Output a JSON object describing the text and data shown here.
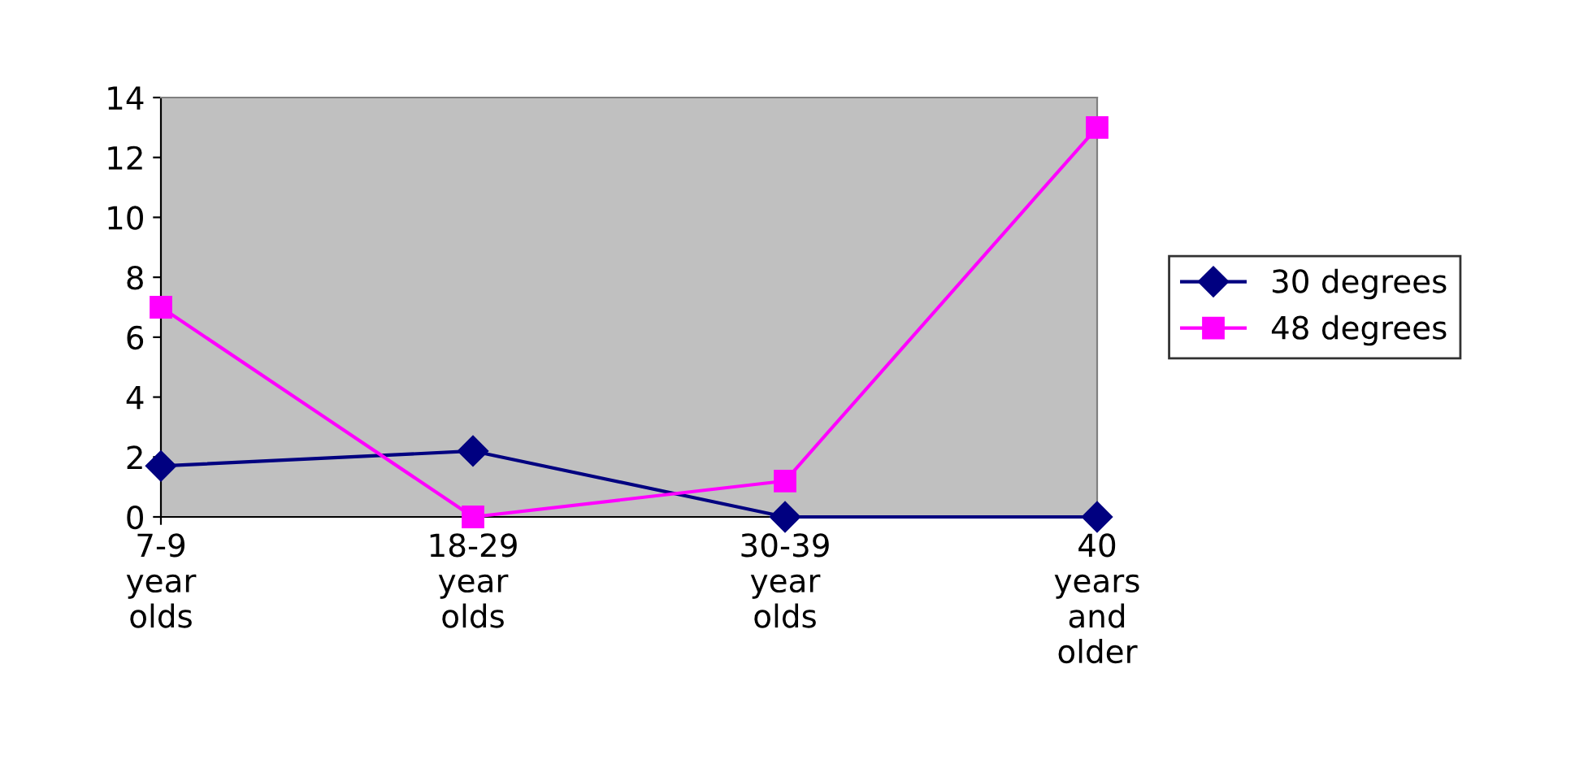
{
  "chart_data": {
    "type": "line",
    "categories": [
      "7-9\nyear\nolds",
      "18-29\nyear\nolds",
      "30-39\nyear\nolds",
      "40\nyears\nand\nolder"
    ],
    "series": [
      {
        "name": "30 degrees",
        "color": "#000080",
        "marker": "diamond",
        "values": [
          1.7,
          2.2,
          0,
          0
        ]
      },
      {
        "name": "48 degrees",
        "color": "#ff00ff",
        "marker": "square",
        "values": [
          7,
          0,
          1.2,
          13
        ]
      }
    ],
    "ylim": [
      0,
      14
    ],
    "yticks": [
      0,
      2,
      4,
      6,
      8,
      10,
      12,
      14
    ],
    "grid": false,
    "legend": "right",
    "line_style": "solid"
  }
}
